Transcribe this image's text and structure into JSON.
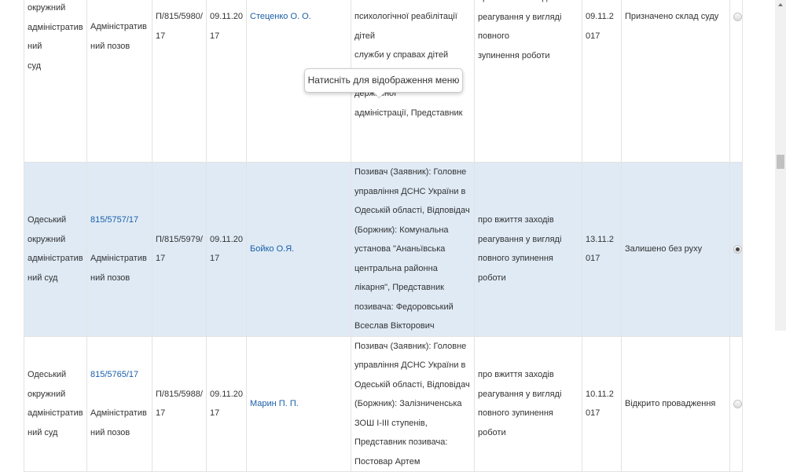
{
  "rows": [
    {
      "court_lines": [
        "окружний",
        "адміністративний",
        "суд"
      ],
      "case_link": "",
      "form": "Адміністративний позов",
      "number": "П/815/5980/17",
      "date": "09.11.2017",
      "judge": "Стеценко О. О.",
      "parties_lines": [
        "психологічної реабілітації дітей",
        "служби у справах дітей",
        "тарутинської районної державної",
        "адміністрації, Представник"
      ],
      "subject_lines": [
        "про вжиття заходів",
        "реагування у вигляді повного",
        "зупинення роботи"
      ],
      "status_date": "09.11.2017",
      "status": "Призначено склад суду",
      "selected": false
    },
    {
      "court": "Одеський окружний адміністративний суд",
      "case_link": "815/5757/17",
      "form": "Адміністративний позов",
      "number": "П/815/5979/17",
      "date": "09.11.2017",
      "judge": "Бойко О.Я.",
      "parties": "Позивач (Заявник): Головне управління ДСНС України в Одеській області, Відповідач (Боржник): Комунальна установа \"Ананьївська центральна районна лікарня\", Представник позивача: Федоровський Всеслав Вікторович",
      "subject": "про вжиття заходів реагування у вигляді повного зупинення роботи",
      "status_date": "13.11.2017",
      "status": "Залишено без руху",
      "selected": true
    },
    {
      "court": "Одеський окружний адміністративний суд",
      "case_link": "815/5765/17",
      "form": "Адміністративний позов",
      "number": "П/815/5988/17",
      "date": "09.11.2017",
      "judge": "Марин П. П.",
      "parties": "Позивач (Заявник): Головне управління ДСНС України в Одеській області, Відповідач (Боржник): Залізниченська ЗОШ I-III ступенів, Представник позивача: Постовар Артем",
      "subject": "про вжиття заходів реагування у вигляді повного зупинення роботи",
      "status_date": "10.11.2017",
      "status": "Відкрито провадження",
      "selected": false
    }
  ],
  "tooltip": "Натисніть для відображення меню",
  "colors": {
    "selected_row": "#dfeaf5",
    "link": "#1a5fa8"
  }
}
